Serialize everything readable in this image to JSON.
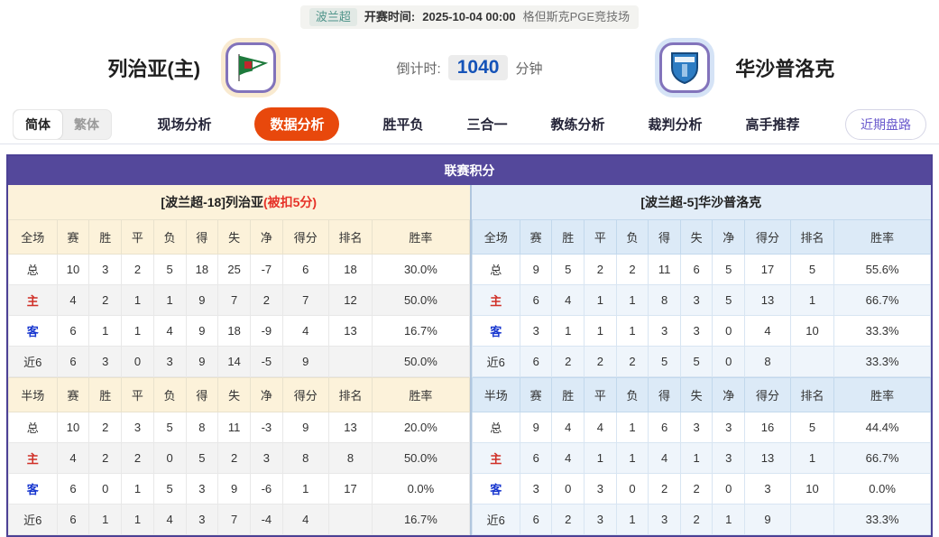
{
  "colors": {
    "accent_orange": "#e8480c",
    "title_purple": "#54489b",
    "countdown_blue": "#1553b8",
    "league_teal": "#4f948a",
    "home_row_red": "#d03028",
    "away_row_blue": "#1837cf",
    "left_panel_cream": "#fcf2da",
    "right_panel_blue": "#dceaf7",
    "logo_border_purple": "#8273bb"
  },
  "top_bar": {
    "league": "波兰超",
    "kickoff_label": "开赛时间:",
    "kickoff_time": "2025-10-04 00:00",
    "venue": "格但斯克PGE竞技场"
  },
  "match_header": {
    "home_name": "列治亚(主)",
    "away_name": "华沙普洛克",
    "countdown_label": "倒计时:",
    "countdown_value": "1040",
    "countdown_unit": "分钟"
  },
  "nav": {
    "lang_toggle": {
      "simplified": "简体",
      "traditional": "繁体"
    },
    "tabs": [
      {
        "id": "live-analysis",
        "label": "现场分析",
        "active": false
      },
      {
        "id": "data-analysis",
        "label": "数据分析",
        "active": true
      },
      {
        "id": "win-draw-loss",
        "label": "胜平负",
        "active": false
      },
      {
        "id": "three-in-one",
        "label": "三合一",
        "active": false
      },
      {
        "id": "coach-analysis",
        "label": "教练分析",
        "active": false
      },
      {
        "id": "referee-analysis",
        "label": "裁判分析",
        "active": false
      },
      {
        "id": "expert-picks",
        "label": "高手推荐",
        "active": false
      }
    ],
    "recent_odds_button": "近期盘路"
  },
  "standings": {
    "title": "联赛积分",
    "left": {
      "team_header": "[波兰超-18]列治亚",
      "team_note": "(被扣5分)",
      "full_time": {
        "header": [
          "全场",
          "赛",
          "胜",
          "平",
          "负",
          "得",
          "失",
          "净",
          "得分",
          "排名",
          "胜率"
        ],
        "rows": [
          {
            "label": "总",
            "cells": [
              "10",
              "3",
              "2",
              "5",
              "18",
              "25",
              "-7",
              "6",
              "18",
              "30.0%"
            ]
          },
          {
            "label": "主",
            "cells": [
              "4",
              "2",
              "1",
              "1",
              "9",
              "7",
              "2",
              "7",
              "12",
              "50.0%"
            ]
          },
          {
            "label": "客",
            "cells": [
              "6",
              "1",
              "1",
              "4",
              "9",
              "18",
              "-9",
              "4",
              "13",
              "16.7%"
            ]
          },
          {
            "label": "近6",
            "cells": [
              "6",
              "3",
              "0",
              "3",
              "9",
              "14",
              "-5",
              "9",
              "",
              "50.0%"
            ]
          }
        ]
      },
      "half_time": {
        "header": [
          "半场",
          "赛",
          "胜",
          "平",
          "负",
          "得",
          "失",
          "净",
          "得分",
          "排名",
          "胜率"
        ],
        "rows": [
          {
            "label": "总",
            "cells": [
              "10",
              "2",
              "3",
              "5",
              "8",
              "11",
              "-3",
              "9",
              "13",
              "20.0%"
            ]
          },
          {
            "label": "主",
            "cells": [
              "4",
              "2",
              "2",
              "0",
              "5",
              "2",
              "3",
              "8",
              "8",
              "50.0%"
            ]
          },
          {
            "label": "客",
            "cells": [
              "6",
              "0",
              "1",
              "5",
              "3",
              "9",
              "-6",
              "1",
              "17",
              "0.0%"
            ]
          },
          {
            "label": "近6",
            "cells": [
              "6",
              "1",
              "1",
              "4",
              "3",
              "7",
              "-4",
              "4",
              "",
              "16.7%"
            ]
          }
        ]
      }
    },
    "right": {
      "team_header": "[波兰超-5]华沙普洛克",
      "team_note": "",
      "full_time": {
        "header": [
          "全场",
          "赛",
          "胜",
          "平",
          "负",
          "得",
          "失",
          "净",
          "得分",
          "排名",
          "胜率"
        ],
        "rows": [
          {
            "label": "总",
            "cells": [
              "9",
              "5",
              "2",
              "2",
              "11",
              "6",
              "5",
              "17",
              "5",
              "55.6%"
            ]
          },
          {
            "label": "主",
            "cells": [
              "6",
              "4",
              "1",
              "1",
              "8",
              "3",
              "5",
              "13",
              "1",
              "66.7%"
            ]
          },
          {
            "label": "客",
            "cells": [
              "3",
              "1",
              "1",
              "1",
              "3",
              "3",
              "0",
              "4",
              "10",
              "33.3%"
            ]
          },
          {
            "label": "近6",
            "cells": [
              "6",
              "2",
              "2",
              "2",
              "5",
              "5",
              "0",
              "8",
              "",
              "33.3%"
            ]
          }
        ]
      },
      "half_time": {
        "header": [
          "半场",
          "赛",
          "胜",
          "平",
          "负",
          "得",
          "失",
          "净",
          "得分",
          "排名",
          "胜率"
        ],
        "rows": [
          {
            "label": "总",
            "cells": [
              "9",
              "4",
              "4",
              "1",
              "6",
              "3",
              "3",
              "16",
              "5",
              "44.4%"
            ]
          },
          {
            "label": "主",
            "cells": [
              "6",
              "4",
              "1",
              "1",
              "4",
              "1",
              "3",
              "13",
              "1",
              "66.7%"
            ]
          },
          {
            "label": "客",
            "cells": [
              "3",
              "0",
              "3",
              "0",
              "2",
              "2",
              "0",
              "3",
              "10",
              "0.0%"
            ]
          },
          {
            "label": "近6",
            "cells": [
              "6",
              "2",
              "3",
              "1",
              "3",
              "2",
              "1",
              "9",
              "",
              "33.3%"
            ]
          }
        ]
      }
    }
  },
  "icons": {
    "home_logo": "pennant-flag-icon",
    "away_logo": "blue-shield-icon"
  }
}
